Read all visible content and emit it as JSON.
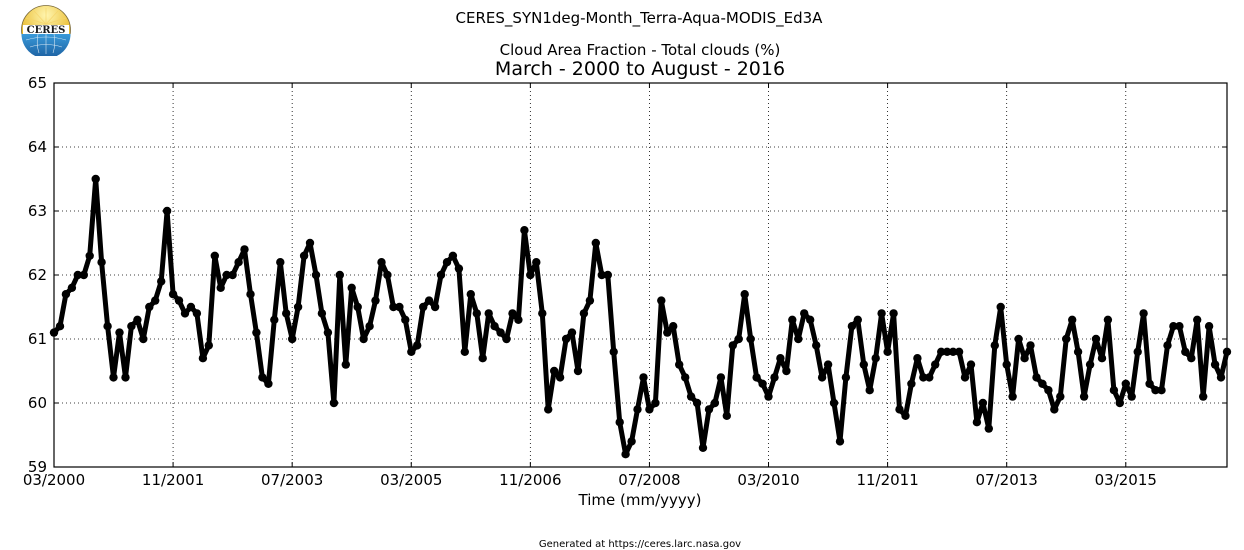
{
  "logo": {
    "text": "CERES"
  },
  "footer": "Generated at https://ceres.larc.nasa.gov",
  "chart_data": {
    "type": "line",
    "title": "CERES_SYN1deg-Month_Terra-Aqua-MODIS_Ed3A",
    "subtitle": "Cloud Area Fraction - Total clouds (%)",
    "date_range": "March - 2000 to August - 2016",
    "xlabel": "Time (mm/yyyy)",
    "ylabel": "",
    "xlim": [
      "03/2000",
      "08/2016"
    ],
    "ylim": [
      59,
      65
    ],
    "x_ticks": [
      "03/2000",
      "11/2001",
      "07/2003",
      "03/2005",
      "11/2006",
      "07/2008",
      "03/2010",
      "11/2011",
      "07/2013",
      "03/2015"
    ],
    "y_ticks": [
      59,
      60,
      61,
      62,
      63,
      64,
      65
    ],
    "grid": true,
    "legend": "none",
    "line_color": "#000000",
    "series": [
      {
        "start": "03/2000",
        "frequency": "monthly",
        "values": [
          61.1,
          61.2,
          61.7,
          61.8,
          62.0,
          62.0,
          62.3,
          63.5,
          62.2,
          61.2,
          60.4,
          61.1,
          60.4,
          61.2,
          61.3,
          61.0,
          61.5,
          61.6,
          61.9,
          63.0,
          61.7,
          61.6,
          61.4,
          61.5,
          61.4,
          60.7,
          60.9,
          62.3,
          61.8,
          62.0,
          62.0,
          62.2,
          62.4,
          61.7,
          61.1,
          60.4,
          60.3,
          61.3,
          62.2,
          61.4,
          61.0,
          61.5,
          62.3,
          62.5,
          62.0,
          61.4,
          61.1,
          60.0,
          62.0,
          60.6,
          61.8,
          61.5,
          61.0,
          61.2,
          61.6,
          62.2,
          62.0,
          61.5,
          61.5,
          61.3,
          60.8,
          60.9,
          61.5,
          61.6,
          61.5,
          62.0,
          62.2,
          62.3,
          62.1,
          60.8,
          61.7,
          61.4,
          60.7,
          61.4,
          61.2,
          61.1,
          61.0,
          61.4,
          61.3,
          62.7,
          62.0,
          62.2,
          61.4,
          59.9,
          60.5,
          60.4,
          61.0,
          61.1,
          60.5,
          61.4,
          61.6,
          62.5,
          62.0,
          62.0,
          60.8,
          59.7,
          59.2,
          59.4,
          59.9,
          60.4,
          59.9,
          60.0,
          61.6,
          61.1,
          61.2,
          60.6,
          60.4,
          60.1,
          60.0,
          59.3,
          59.9,
          60.0,
          60.4,
          59.8,
          60.9,
          61.0,
          61.7,
          61.0,
          60.4,
          60.3,
          60.1,
          60.4,
          60.7,
          60.5,
          61.3,
          61.0,
          61.4,
          61.3,
          60.9,
          60.4,
          60.6,
          60.0,
          59.4,
          60.4,
          61.2,
          61.3,
          60.6,
          60.2,
          60.7,
          61.4,
          60.8,
          61.4,
          59.9,
          59.8,
          60.3,
          60.7,
          60.4,
          60.4,
          60.6,
          60.8,
          60.8,
          60.8,
          60.8,
          60.4,
          60.6,
          59.7,
          60.0,
          59.6,
          60.9,
          61.5,
          60.6,
          60.1,
          61.0,
          60.7,
          60.9,
          60.4,
          60.3,
          60.2,
          59.9,
          60.1,
          61.0,
          61.3,
          60.8,
          60.1,
          60.6,
          61.0,
          60.7,
          61.3,
          60.2,
          60.0,
          60.3,
          60.1,
          60.8,
          61.4,
          60.3,
          60.2,
          60.2,
          60.9,
          61.2,
          61.2,
          60.8,
          60.7,
          61.3,
          60.1,
          61.2,
          60.6,
          60.4,
          60.8
        ]
      }
    ]
  }
}
